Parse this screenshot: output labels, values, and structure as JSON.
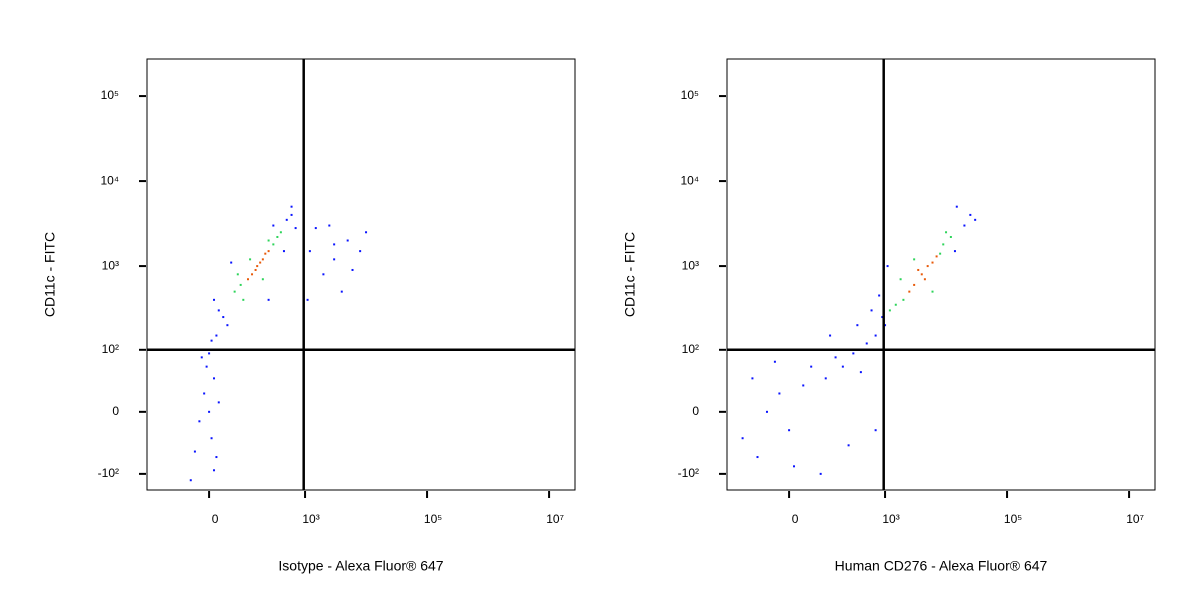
{
  "chart_data": [
    {
      "type": "scatter",
      "xlabel": "Isotype - Alexa Fluor® 647",
      "ylabel": "CD11c - FITC",
      "xscale": "asinh",
      "xscale_linear_width": 53.5,
      "yscale": "asinh",
      "yscale_linear_width": 38.6,
      "xlim": [
        -276,
        26600000
      ],
      "ylim": [
        -158,
        273000
      ],
      "xticks": [
        0,
        {
          "value": 1000,
          "label": "10³"
        },
        {
          "value": 100000,
          "label": "10⁵"
        },
        {
          "value": 10000000,
          "label": "10⁷"
        }
      ],
      "yticks": [
        {
          "value": -100,
          "label": "-10²"
        },
        0,
        {
          "value": 100,
          "label": "10²"
        },
        {
          "value": 1000,
          "label": "10³"
        },
        {
          "value": 10000,
          "label": "10⁴"
        },
        {
          "value": 100000,
          "label": "10⁵"
        }
      ],
      "gate_x": 950,
      "gate_y": 100,
      "series": [
        {
          "color": "#0a14ff",
          "x": [
            20,
            30,
            10,
            40,
            500,
            600,
            700,
            450,
            15,
            600,
            300,
            50,
            250,
            0,
            -10,
            5,
            -20,
            10,
            -5,
            15,
            0,
            -30,
            20,
            -15,
            5,
            -40,
            10,
            1200,
            2000,
            3000,
            5000,
            8000,
            10000,
            1500,
            4000,
            6000,
            1100,
            3000,
            2500
          ],
          "values": [
            300,
            250,
            400,
            200,
            3500,
            4000,
            2800,
            1500,
            150,
            5000,
            3000,
            1100,
            400,
            0,
            20,
            -30,
            -10,
            40,
            60,
            -60,
            90,
            -50,
            10,
            80,
            130,
            -120,
            -90,
            1500,
            800,
            1200,
            2000,
            1500,
            2500,
            2800,
            500,
            900,
            400,
            1800,
            3000
          ]
        },
        {
          "color": "#2dd45a",
          "x": [
            60,
            80,
            300,
            350,
            90,
            250,
            120,
            70,
            400,
            200
          ],
          "values": [
            500,
            600,
            1800,
            2200,
            400,
            2000,
            1200,
            800,
            2500,
            700
          ]
        },
        {
          "color": "#e85a0a",
          "x": [
            150,
            180,
            200,
            130,
            220,
            160,
            110,
            250
          ],
          "values": [
            900,
            1100,
            1200,
            800,
            1400,
            1000,
            700,
            1500
          ]
        }
      ]
    },
    {
      "type": "scatter",
      "xlabel": "Human CD276 - Alexa Fluor® 647",
      "ylabel": "CD11c - FITC",
      "xscale": "asinh",
      "xscale_linear_width": 53.5,
      "yscale": "asinh",
      "yscale_linear_width": 38.6,
      "xlim": [
        -276,
        26600000
      ],
      "ylim": [
        -158,
        273000
      ],
      "xticks": [
        0,
        {
          "value": 1000,
          "label": "10³"
        },
        {
          "value": 100000,
          "label": "10⁵"
        },
        {
          "value": 10000000,
          "label": "10⁷"
        }
      ],
      "yticks": [
        {
          "value": -100,
          "label": "-10²"
        },
        0,
        {
          "value": 100,
          "label": "10²"
        },
        {
          "value": 1000,
          "label": "10³"
        },
        {
          "value": 10000,
          "label": "10⁴"
        },
        {
          "value": 100000,
          "label": "10⁵"
        }
      ],
      "gate_x": 950,
      "gate_y": 100,
      "series": [
        {
          "color": "#0a14ff",
          "x": [
            20000,
            25000,
            15000,
            1000,
            900,
            30000,
            800,
            1100,
            700,
            14000,
            -50,
            -20,
            0,
            30,
            -80,
            50,
            100,
            150,
            200,
            300,
            400,
            -100,
            250,
            10,
            500,
            600,
            350,
            -150,
            80,
            120,
            -30,
            20,
            700
          ],
          "values": [
            3000,
            4000,
            5000,
            200,
            250,
            3500,
            450,
            1000,
            150,
            1500,
            0,
            20,
            -20,
            30,
            -60,
            60,
            40,
            80,
            60,
            90,
            50,
            40,
            -40,
            -80,
            120,
            300,
            200,
            -30,
            -100,
            150,
            70,
            100,
            -20
          ]
        },
        {
          "color": "#2dd45a",
          "x": [
            2000,
            1500,
            9000,
            12000,
            8000,
            1800,
            6000,
            3000,
            10000,
            1200
          ],
          "values": [
            400,
            350,
            1800,
            2200,
            1400,
            700,
            500,
            1200,
            2500,
            300
          ]
        },
        {
          "color": "#e85a0a",
          "x": [
            4000,
            3000,
            5000,
            6000,
            2500,
            3500,
            7000,
            4500
          ],
          "values": [
            800,
            600,
            1000,
            1100,
            500,
            900,
            1300,
            700
          ]
        }
      ]
    }
  ]
}
